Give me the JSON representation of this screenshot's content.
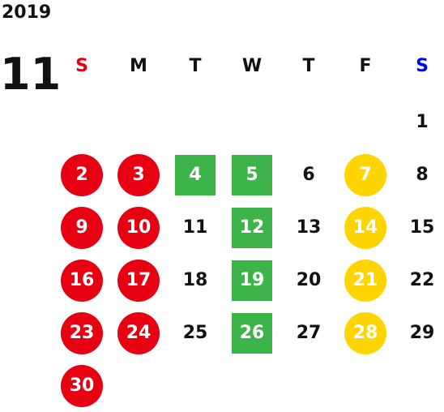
{
  "calendar": {
    "year": "2019",
    "month": "11",
    "weekdays": [
      {
        "label": "S",
        "color": "#e60012"
      },
      {
        "label": "M",
        "color": "#111111"
      },
      {
        "label": "T",
        "color": "#111111"
      },
      {
        "label": "W",
        "color": "#111111"
      },
      {
        "label": "T",
        "color": "#111111"
      },
      {
        "label": "F",
        "color": "#111111"
      },
      {
        "label": "S",
        "color": "#0000ff"
      }
    ],
    "colors": {
      "red": "#e60012",
      "green": "#3cb44a",
      "yellow": "#ffd400",
      "plain": "#111111"
    },
    "first_weekday": 6,
    "days": [
      {
        "d": "1",
        "style": "plain"
      },
      {
        "d": "2",
        "style": "red"
      },
      {
        "d": "3",
        "style": "red"
      },
      {
        "d": "4",
        "style": "green"
      },
      {
        "d": "5",
        "style": "green"
      },
      {
        "d": "6",
        "style": "plain"
      },
      {
        "d": "7",
        "style": "yellow"
      },
      {
        "d": "8",
        "style": "plain"
      },
      {
        "d": "9",
        "style": "red"
      },
      {
        "d": "10",
        "style": "red"
      },
      {
        "d": "11",
        "style": "plain"
      },
      {
        "d": "12",
        "style": "green"
      },
      {
        "d": "13",
        "style": "plain"
      },
      {
        "d": "14",
        "style": "yellow"
      },
      {
        "d": "15",
        "style": "plain"
      },
      {
        "d": "16",
        "style": "red"
      },
      {
        "d": "17",
        "style": "red"
      },
      {
        "d": "18",
        "style": "plain"
      },
      {
        "d": "19",
        "style": "green"
      },
      {
        "d": "20",
        "style": "plain"
      },
      {
        "d": "21",
        "style": "yellow"
      },
      {
        "d": "22",
        "style": "plain"
      },
      {
        "d": "23",
        "style": "red"
      },
      {
        "d": "24",
        "style": "red"
      },
      {
        "d": "25",
        "style": "plain"
      },
      {
        "d": "26",
        "style": "green"
      },
      {
        "d": "27",
        "style": "plain"
      },
      {
        "d": "28",
        "style": "yellow"
      },
      {
        "d": "29",
        "style": "plain"
      },
      {
        "d": "30",
        "style": "red"
      }
    ]
  }
}
